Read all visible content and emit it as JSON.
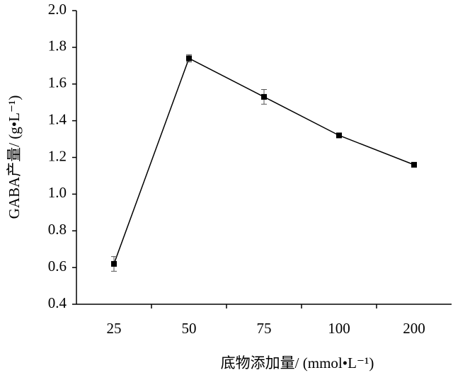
{
  "chart_data": {
    "type": "line",
    "x_label": "底物添加量/ (mmol•L⁻¹)",
    "y_label": "GABA产量/ (g•L⁻¹)",
    "categories": [
      "25",
      "50",
      "75",
      "100",
      "200"
    ],
    "values": [
      0.62,
      1.74,
      1.53,
      1.32,
      1.16
    ],
    "errors": [
      0.04,
      0.02,
      0.04,
      0.01,
      0.01
    ],
    "color": "#000000",
    "ylim": [
      0.4,
      2.0
    ],
    "yticks": [
      0.4,
      0.6,
      0.8,
      {
        "value": 1.0,
        "label": "1.0"
      },
      1.2,
      1.4,
      1.6,
      1.8,
      {
        "value": 2.0,
        "label": "2.0"
      }
    ]
  }
}
